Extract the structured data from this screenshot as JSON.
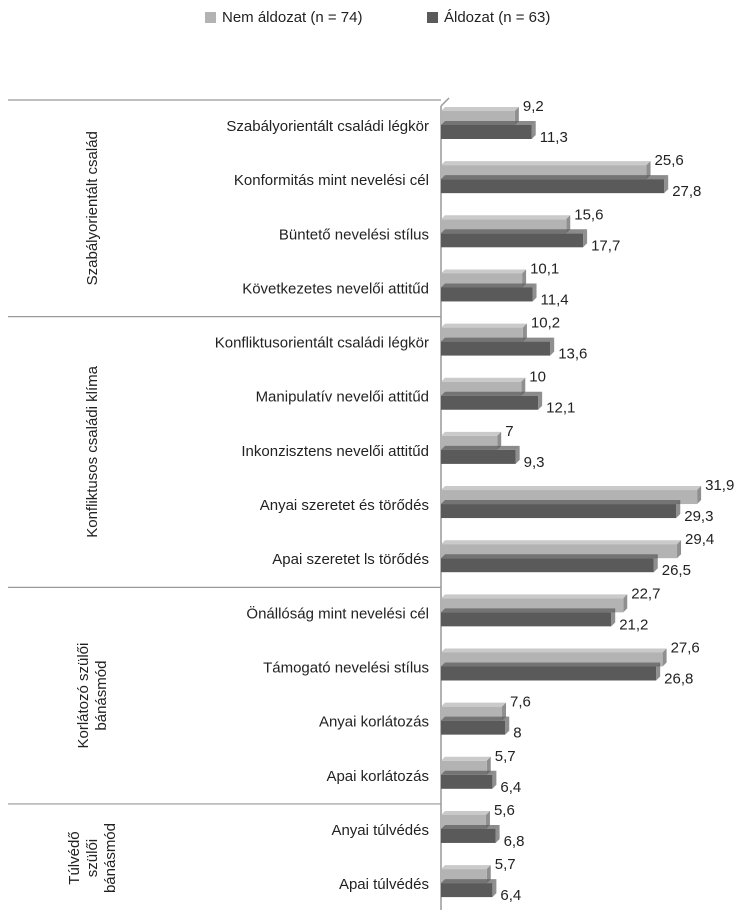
{
  "chart_data": {
    "type": "bar",
    "orientation": "horizontal",
    "groups": [
      {
        "name": [
          "Szabályorientált család"
        ],
        "categories": [
          "Szabályorientált családi légkör",
          "Konformitás mint nevelési cél",
          "Büntető nevelési stílus",
          "Következetes nevelői attitűd"
        ]
      },
      {
        "name": [
          "Konfliktusos családi klíma"
        ],
        "categories": [
          "Konfliktusorientált családi légkör",
          "Manipulatív nevelői attitűd",
          "Inkonzisztens nevelői attitűd",
          "Anyai szeretet és törődés",
          "Apai szeretet ls törődés"
        ]
      },
      {
        "name": [
          "Korlátozó szülői",
          "bánásmód"
        ],
        "categories": [
          "Önállóság mint nevelési cél",
          "Támogató nevelési stílus",
          "Anyai korlátozás",
          "Apai korlátozás"
        ]
      },
      {
        "name": [
          "Túlvédő",
          "szülői",
          "bánásmód"
        ],
        "categories": [
          "Anyai túlvédés",
          "Apai túlvédés"
        ]
      }
    ],
    "series": [
      {
        "name": "Nem áldozat (n = 74)",
        "color": "#b3b3b3",
        "values": [
          9.2,
          25.6,
          15.6,
          10.1,
          10.2,
          10,
          7,
          31.9,
          29.4,
          22.7,
          27.6,
          7.6,
          5.7,
          5.6,
          5.7
        ],
        "value_labels": [
          "9,2",
          "25,6",
          "15,6",
          "10,1",
          "10,2",
          "10",
          "7",
          "31,9",
          "29,4",
          "22,7",
          "27,6",
          "7,6",
          "5,7",
          "5,6",
          "5,7"
        ]
      },
      {
        "name": "Áldozat (n = 63)",
        "color": "#5a5a5a",
        "values": [
          11.3,
          27.8,
          17.7,
          11.4,
          13.6,
          12.1,
          9.3,
          29.3,
          26.5,
          21.2,
          26.8,
          8,
          6.4,
          6.8,
          6.4
        ],
        "value_labels": [
          "11,3",
          "27,8",
          "17,7",
          "11,4",
          "13,6",
          "12,1",
          "9,3",
          "29,3",
          "26,5",
          "21,2",
          "26,8",
          "8",
          "6,4",
          "6,8",
          "6,4"
        ]
      }
    ],
    "xlim": [
      0,
      35
    ],
    "legend": "top"
  }
}
